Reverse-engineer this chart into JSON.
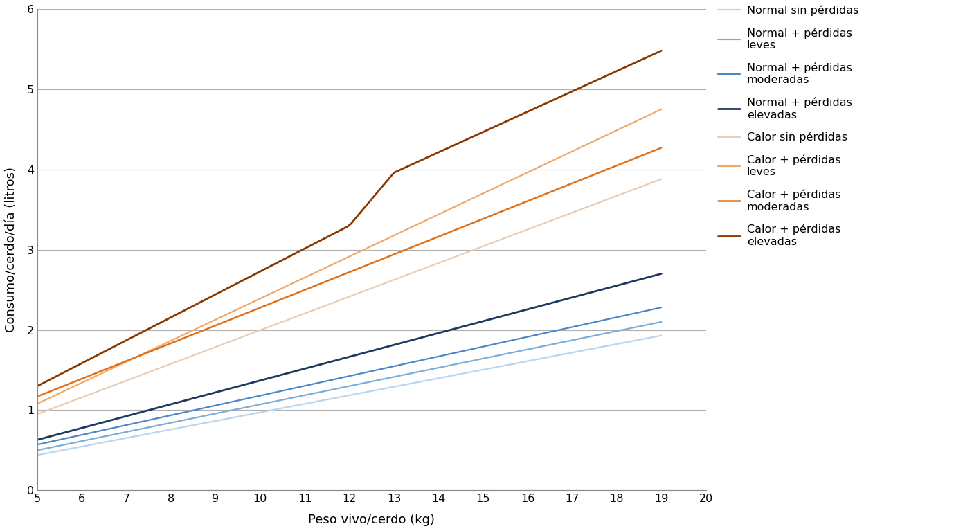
{
  "xlabel": "Peso vivo/cerdo (kg)",
  "ylabel": "Consumo/cerdo/día (litros)",
  "x_ticks": [
    5,
    6,
    7,
    8,
    9,
    10,
    11,
    12,
    13,
    14,
    15,
    16,
    17,
    18,
    19,
    20
  ],
  "ylim": [
    0,
    6
  ],
  "y_ticks": [
    0,
    1,
    2,
    3,
    4,
    5,
    6
  ],
  "series": [
    {
      "label": "Normal sin pérdidas",
      "color": "#b8d4ee",
      "linewidth": 1.6,
      "points_x": [
        5,
        19
      ],
      "points_y": [
        0.44,
        1.93
      ]
    },
    {
      "label": "Normal + pérdidas\nleves",
      "color": "#7aaed6",
      "linewidth": 1.6,
      "points_x": [
        5,
        19
      ],
      "points_y": [
        0.5,
        2.1
      ]
    },
    {
      "label": "Normal + pérdidas\nmoderadas",
      "color": "#4a86c8",
      "linewidth": 1.6,
      "points_x": [
        5,
        19
      ],
      "points_y": [
        0.57,
        2.28
      ]
    },
    {
      "label": "Normal + pérdidas\nelevadas",
      "color": "#1c3a5e",
      "linewidth": 2.0,
      "points_x": [
        5,
        19
      ],
      "points_y": [
        0.63,
        2.7
      ]
    },
    {
      "label": "Calor sin pérdidas",
      "color": "#e8cdb5",
      "linewidth": 1.6,
      "points_x": [
        5,
        19
      ],
      "points_y": [
        0.95,
        3.88
      ]
    },
    {
      "label": "Calor + pérdidas\nleves",
      "color": "#f0a868",
      "linewidth": 1.6,
      "points_x": [
        5,
        19
      ],
      "points_y": [
        1.08,
        4.75
      ]
    },
    {
      "label": "Calor + pérdidas\nmoderadas",
      "color": "#e07018",
      "linewidth": 1.8,
      "points_x": [
        5,
        19
      ],
      "points_y": [
        1.17,
        4.27
      ]
    },
    {
      "label": "Calor + pérdidas\nelevadas",
      "color": "#8b3800",
      "linewidth": 2.0,
      "points_x": [
        5,
        12,
        13,
        19
      ],
      "points_y": [
        1.3,
        3.3,
        3.96,
        5.48
      ]
    }
  ],
  "background_color": "#ffffff",
  "grid_color": "#b0b0b0",
  "legend_fontsize": 11.5,
  "axis_fontsize": 13,
  "tick_fontsize": 11.5
}
